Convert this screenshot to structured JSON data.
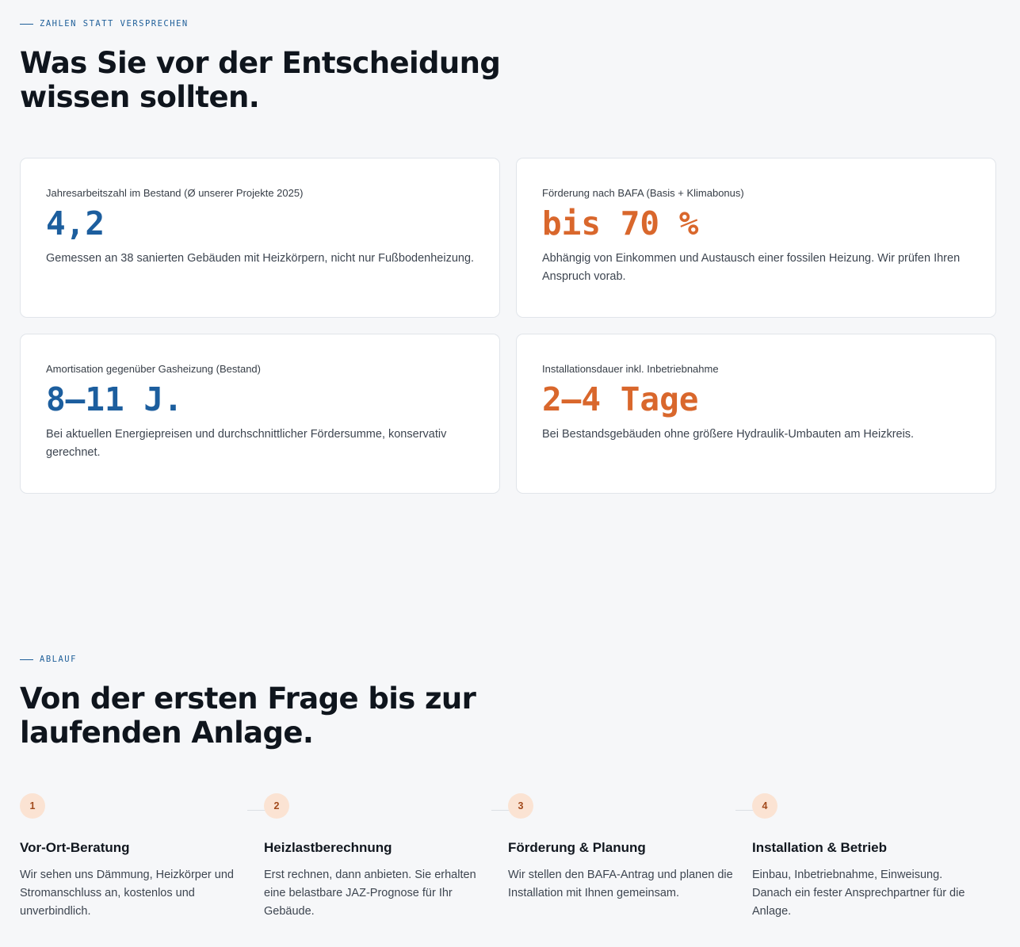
{
  "stats": {
    "eyebrow": "ZAHLEN STATT VERSPRECHEN",
    "heading_line1": "Was Sie vor der Entscheidung",
    "heading_line2": "wissen sollten.",
    "cards": [
      {
        "label": "Jahresarbeitszahl im Bestand (Ø unserer Projekte 2025)",
        "value": "4,2",
        "description": "Gemessen an 38 sanierten Gebäuden mit Heizkörpern, nicht nur Fußbodenheizung."
      },
      {
        "label": "Förderung nach BAFA (Basis + Klimabonus)",
        "value": "bis 70 %",
        "description": "Abhängig von Einkommen und Austausch einer fossilen Heizung. Wir prüfen Ihren Anspruch vorab."
      },
      {
        "label": "Amortisation gegenüber Gasheizung (Bestand)",
        "value": "8–11 J.",
        "description": "Bei aktuellen Energiepreisen und durchschnittlicher Fördersumme, konservativ gerechnet."
      },
      {
        "label": "Installationsdauer inkl. Inbetriebnahme",
        "value": "2–4 Tage",
        "description": "Bei Bestandsgebäuden ohne größere Hydraulik-Umbauten am Heizkreis."
      }
    ],
    "colors": {
      "value_blue": "#1c5e9e",
      "value_orange": "#d9672c"
    }
  },
  "process": {
    "eyebrow": "ABLAUF",
    "heading_line1": "Von der ersten Frage bis zur",
    "heading_line2": "laufenden Anlage.",
    "steps": [
      {
        "number": "1",
        "title": "Vor-Ort-Beratung",
        "description": "Wir sehen uns Dämmung, Heizkörper und Stromanschluss an, kostenlos und unverbindlich."
      },
      {
        "number": "2",
        "title": "Heizlastberechnung",
        "description": "Erst rechnen, dann anbieten. Sie erhalten eine belastbare JAZ-Prognose für Ihr Gebäude."
      },
      {
        "number": "3",
        "title": "Förderung & Planung",
        "description": "Wir stellen den BAFA-Antrag und planen die Installation mit Ihnen gemeinsam."
      },
      {
        "number": "4",
        "title": "Installation & Betrieb",
        "description": "Einbau, Inbetriebnahme, Einweisung. Danach ein fester Ansprechpartner für die Anlage."
      }
    ]
  }
}
